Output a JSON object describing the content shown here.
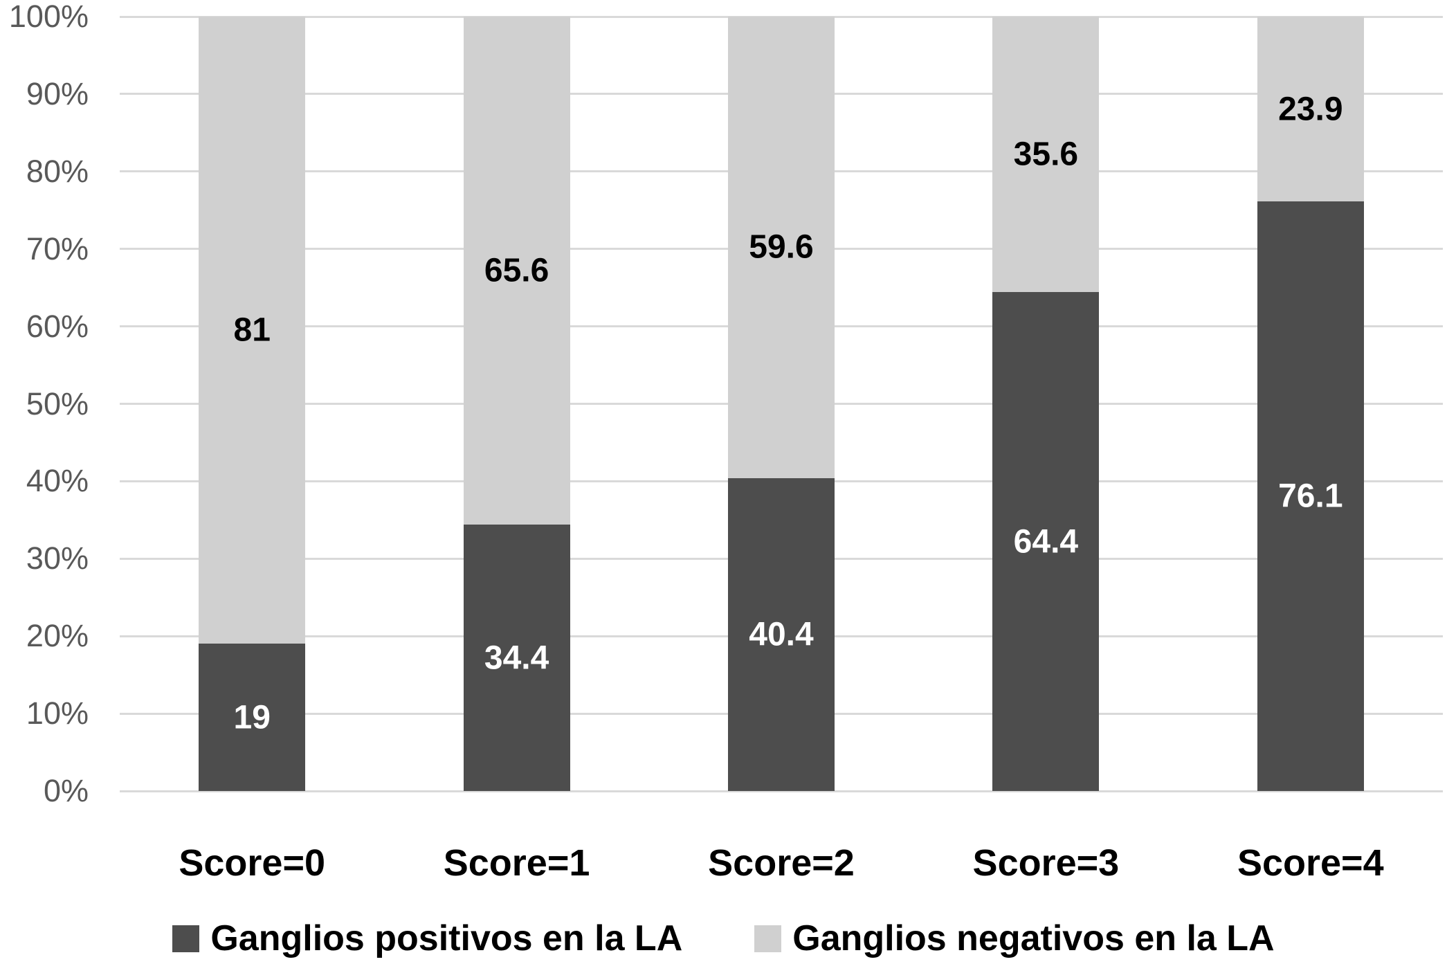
{
  "chart_data": {
    "type": "bar",
    "variant": "stacked-100-percent-column",
    "title": "",
    "xlabel": "",
    "ylabel": "",
    "categories": [
      "Score=0",
      "Score=1",
      "Score=2",
      "Score=3",
      "Score=4"
    ],
    "series": [
      {
        "name": "Ganglios positivos en la LA",
        "color": "#4d4d4d",
        "label_color": "#ffffff",
        "values": [
          19,
          34.4,
          40.4,
          64.4,
          76.1
        ],
        "labels": [
          "19",
          "34.4",
          "40.4",
          "64.4",
          "76.1"
        ]
      },
      {
        "name": "Ganglios negativos en la LA",
        "color": "#d0d0d0",
        "label_color": "#000000",
        "values": [
          81,
          65.6,
          59.6,
          35.6,
          23.9
        ],
        "labels": [
          "81",
          "65.6",
          "59.6",
          "35.6",
          "23.9"
        ]
      }
    ],
    "y_axis": {
      "min": 0,
      "max": 100,
      "tick_step": 10,
      "tick_labels": [
        "0%",
        "10%",
        "20%",
        "30%",
        "40%",
        "50%",
        "60%",
        "70%",
        "80%",
        "90%",
        "100%"
      ]
    },
    "grid": true,
    "legend_position": "bottom"
  },
  "colors": {
    "background": "#ffffff",
    "gridline": "#d9d9d9",
    "axis_tick_text": "#595959",
    "category_text": "#000000",
    "legend_text": "#000000",
    "series_positive": "#4d4d4d",
    "series_negative": "#d0d0d0"
  }
}
